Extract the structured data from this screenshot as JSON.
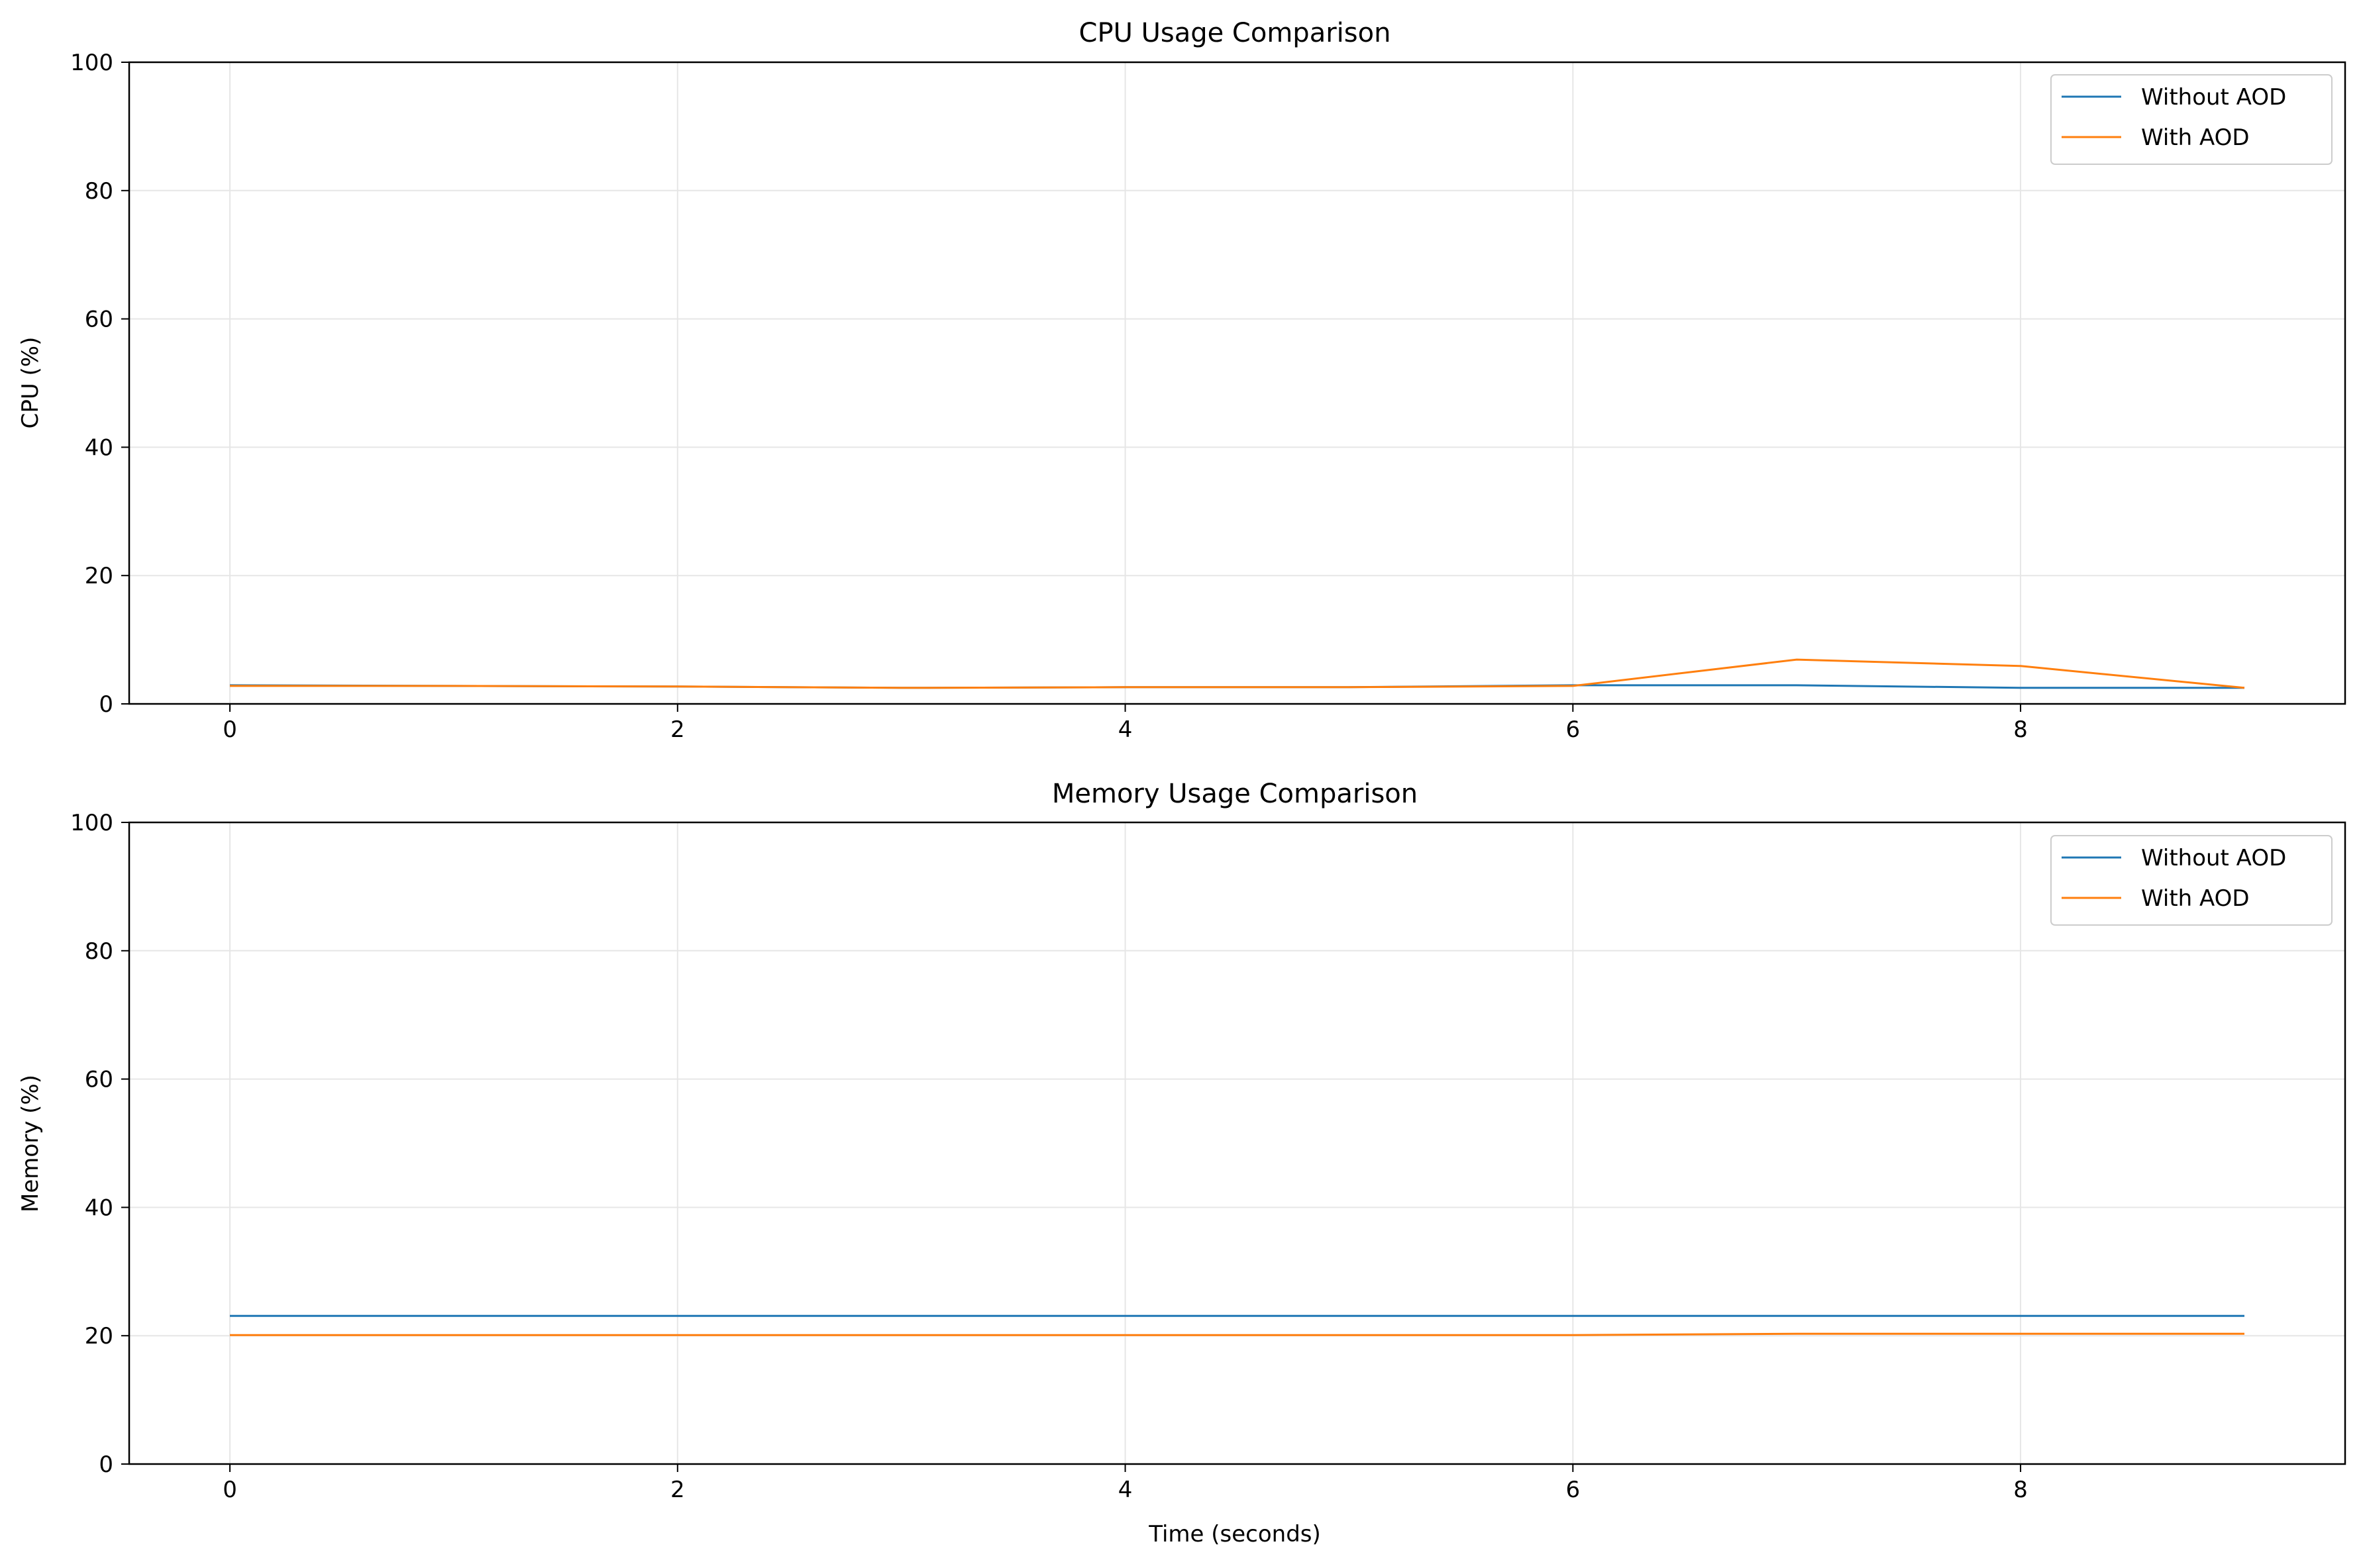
{
  "chart_data": [
    {
      "type": "line",
      "title": "CPU Usage Comparison",
      "xlabel": "",
      "ylabel": "CPU (%)",
      "xlim": [
        -0.45,
        9.45
      ],
      "ylim": [
        0,
        100
      ],
      "xticks": [
        0,
        2,
        4,
        6,
        8
      ],
      "yticks": [
        0,
        20,
        40,
        60,
        80,
        100
      ],
      "grid": true,
      "legend_position": "top-right",
      "x": [
        0,
        1,
        2,
        3,
        4,
        5,
        6,
        7,
        8,
        9
      ],
      "series": [
        {
          "name": "Without AOD",
          "color": "#1f77b4",
          "values": [
            2.9,
            2.8,
            2.7,
            2.5,
            2.6,
            2.6,
            2.9,
            2.9,
            2.5,
            2.5
          ]
        },
        {
          "name": "With AOD",
          "color": "#ff7f0e",
          "values": [
            2.8,
            2.8,
            2.7,
            2.5,
            2.6,
            2.6,
            2.8,
            6.9,
            5.9,
            2.5
          ]
        }
      ]
    },
    {
      "type": "line",
      "title": "Memory Usage Comparison",
      "xlabel": "Time (seconds)",
      "ylabel": "Memory (%)",
      "xlim": [
        -0.45,
        9.45
      ],
      "ylim": [
        0,
        100
      ],
      "xticks": [
        0,
        2,
        4,
        6,
        8
      ],
      "yticks": [
        0,
        20,
        40,
        60,
        80,
        100
      ],
      "grid": true,
      "legend_position": "top-right",
      "x": [
        0,
        1,
        2,
        3,
        4,
        5,
        6,
        7,
        8,
        9
      ],
      "series": [
        {
          "name": "Without AOD",
          "color": "#1f77b4",
          "values": [
            23.1,
            23.1,
            23.1,
            23.1,
            23.1,
            23.1,
            23.1,
            23.1,
            23.1,
            23.1
          ]
        },
        {
          "name": "With AOD",
          "color": "#ff7f0e",
          "values": [
            20.1,
            20.1,
            20.1,
            20.1,
            20.1,
            20.1,
            20.1,
            20.3,
            20.3,
            20.3
          ]
        }
      ]
    }
  ]
}
